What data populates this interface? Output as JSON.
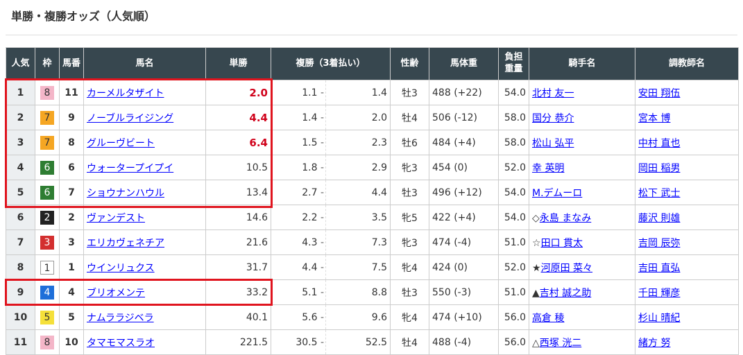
{
  "title": "単勝・複勝オッズ（人気順）",
  "headers": {
    "pop": "人気",
    "waku": "枠",
    "num": "馬番",
    "name": "馬名",
    "win": "単勝",
    "place": "複勝（3着払い）",
    "sexage": "性齢",
    "weight": "馬体重",
    "load1": "負担",
    "load2": "重量",
    "jockey": "騎手名",
    "trainer": "調教師名"
  },
  "waku_colors": {
    "1": "#ffffff",
    "2": "#222222",
    "3": "#d32f2f",
    "4": "#1e6fd9",
    "5": "#f5e03a",
    "6": "#2e7d32",
    "7": "#f5a623",
    "8": "#f4b6c8"
  },
  "win_highlight_color": "#d0021b",
  "rows": [
    {
      "pop": "1",
      "waku": "8",
      "num": "11",
      "name": "カーメルタザイト",
      "win": "2.0",
      "place_min": "1.1",
      "place_max": "1.4",
      "sexage": "牡3",
      "weight": "488 (+22)",
      "load": "54.0",
      "jockey_mark": "",
      "jockey": "北村 友一",
      "trainer": "安田 翔伍",
      "hot": true
    },
    {
      "pop": "2",
      "waku": "7",
      "num": "9",
      "name": "ノーブルライジング",
      "win": "4.4",
      "place_min": "1.4",
      "place_max": "2.0",
      "sexage": "牡4",
      "weight": "506 (-12)",
      "load": "58.0",
      "jockey_mark": "",
      "jockey": "国分 恭介",
      "trainer": "宮本 博",
      "hot": true
    },
    {
      "pop": "3",
      "waku": "7",
      "num": "8",
      "name": "グルーヴビート",
      "win": "6.4",
      "place_min": "1.5",
      "place_max": "2.3",
      "sexage": "牡6",
      "weight": "484 (+4)",
      "load": "58.0",
      "jockey_mark": "",
      "jockey": "松山 弘平",
      "trainer": "中村 直也",
      "hot": true
    },
    {
      "pop": "4",
      "waku": "6",
      "num": "6",
      "name": "ウォータープイプイ",
      "win": "10.5",
      "place_min": "1.8",
      "place_max": "2.9",
      "sexage": "牝3",
      "weight": "454 (0)",
      "load": "52.0",
      "jockey_mark": "",
      "jockey": "幸 英明",
      "trainer": "岡田 稲男",
      "hot": false
    },
    {
      "pop": "5",
      "waku": "6",
      "num": "7",
      "name": "ショウナンハウル",
      "win": "13.4",
      "place_min": "2.7",
      "place_max": "4.4",
      "sexage": "牡3",
      "weight": "496 (+12)",
      "load": "54.0",
      "jockey_mark": "",
      "jockey": "M.デムーロ",
      "trainer": "松下 武士",
      "hot": false
    },
    {
      "pop": "6",
      "waku": "2",
      "num": "2",
      "name": "ヴァンデスト",
      "win": "14.6",
      "place_min": "2.2",
      "place_max": "3.5",
      "sexage": "牝5",
      "weight": "422 (+4)",
      "load": "54.0",
      "jockey_mark": "◇",
      "jockey": "永島 まなみ",
      "trainer": "藤沢 則雄",
      "hot": false
    },
    {
      "pop": "7",
      "waku": "3",
      "num": "3",
      "name": "エリカヴェネチア",
      "win": "21.6",
      "place_min": "4.3",
      "place_max": "7.3",
      "sexage": "牝3",
      "weight": "474 (-4)",
      "load": "51.0",
      "jockey_mark": "☆",
      "jockey": "田口 貫太",
      "trainer": "吉岡 辰弥",
      "hot": false
    },
    {
      "pop": "8",
      "waku": "1",
      "num": "1",
      "name": "ウインリュクス",
      "win": "31.7",
      "place_min": "4.4",
      "place_max": "7.5",
      "sexage": "牝4",
      "weight": "424 (0)",
      "load": "52.0",
      "jockey_mark": "★",
      "jockey": "河原田 菜々",
      "trainer": "吉田 直弘",
      "hot": false
    },
    {
      "pop": "9",
      "waku": "4",
      "num": "4",
      "name": "ブリオメンテ",
      "win": "33.2",
      "place_min": "5.1",
      "place_max": "8.8",
      "sexage": "牡3",
      "weight": "550 (-3)",
      "load": "51.0",
      "jockey_mark": "▲",
      "jockey": "吉村 誠之助",
      "trainer": "千田 輝彦",
      "hot": false
    },
    {
      "pop": "10",
      "waku": "5",
      "num": "5",
      "name": "ナムララジベラ",
      "win": "40.1",
      "place_min": "5.6",
      "place_max": "9.6",
      "sexage": "牝4",
      "weight": "474 (+10)",
      "load": "56.0",
      "jockey_mark": "",
      "jockey": "高倉 稜",
      "trainer": "杉山 晴紀",
      "hot": false
    },
    {
      "pop": "11",
      "waku": "8",
      "num": "10",
      "name": "タマモマスラオ",
      "win": "221.5",
      "place_min": "30.5",
      "place_max": "52.5",
      "sexage": "牡4",
      "weight": "488 (-4)",
      "load": "56.0",
      "jockey_mark": "△",
      "jockey": "西塚 洸二",
      "trainer": "緒方 努",
      "hot": false
    }
  ]
}
